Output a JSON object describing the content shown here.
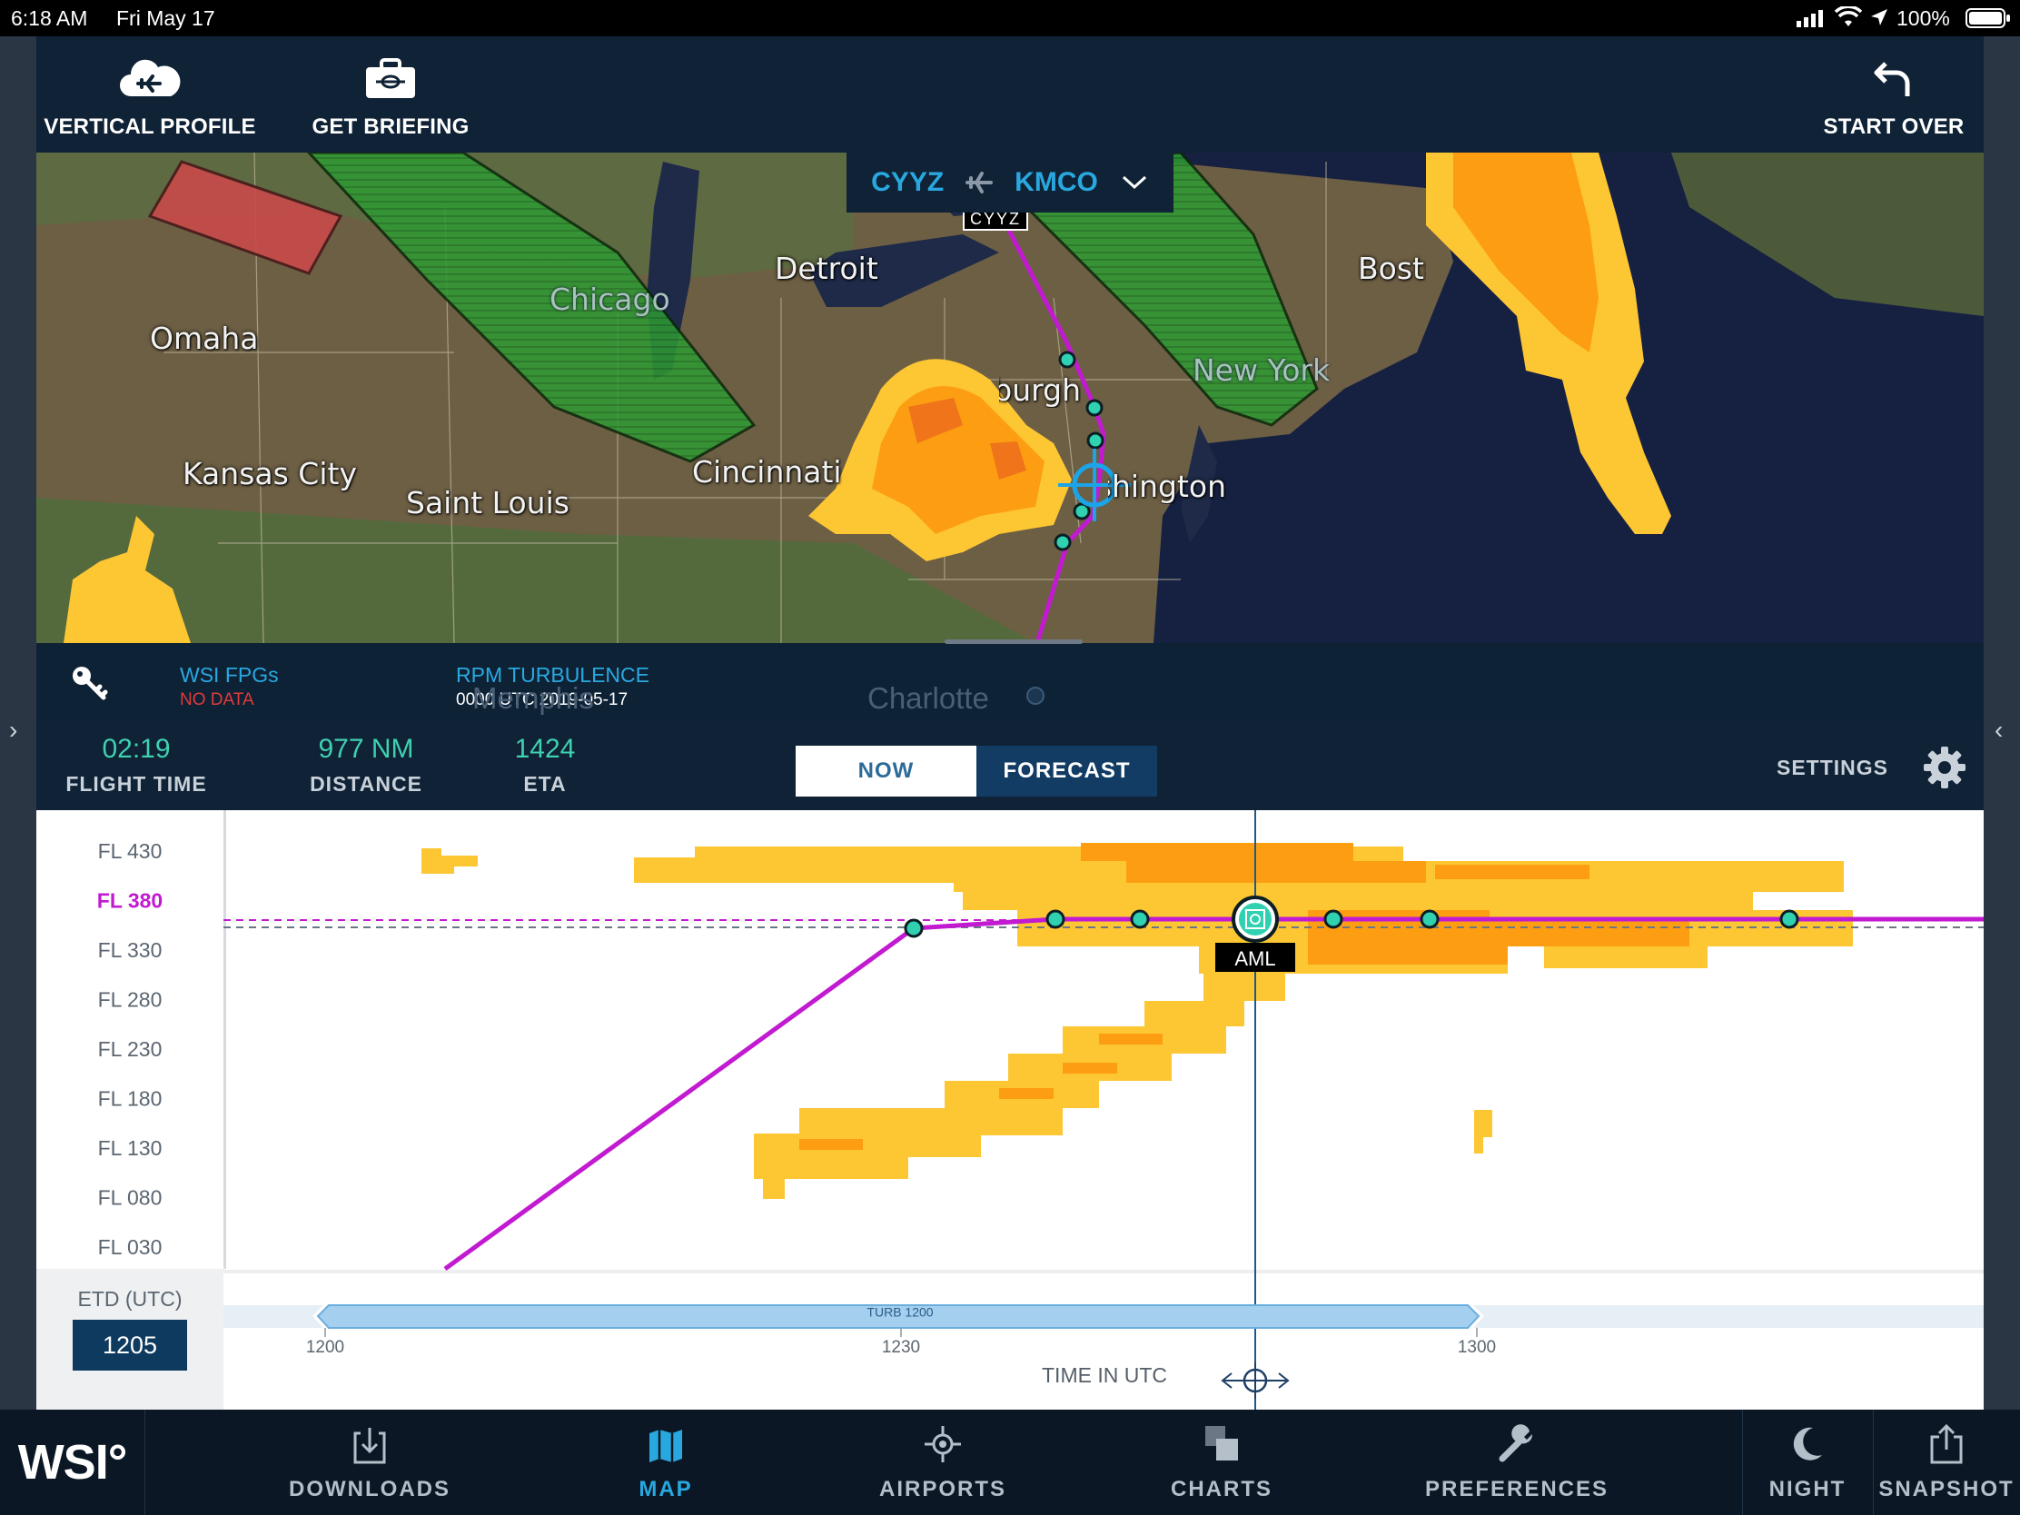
{
  "status_bar": {
    "time": "6:18 AM",
    "date": "Fri May 17",
    "battery": "100%"
  },
  "toolbar": {
    "vertical_profile": "VERTICAL PROFILE",
    "get_briefing": "GET BRIEFING",
    "start_over": "START OVER"
  },
  "route": {
    "origin": "CYYZ",
    "destination": "KMCO",
    "origin_marker": "CYYZ"
  },
  "map": {
    "cities": [
      "Omaha",
      "Chicago",
      "Detroit",
      "Kansas City",
      "Saint Louis",
      "Cincinnati",
      "Pittsburgh",
      "Washington",
      "New York",
      "Boston",
      "Memphis",
      "Charlotte"
    ]
  },
  "legend": {
    "fpg_title": "WSI FPGs",
    "fpg_status": "NO DATA",
    "turb_title": "RPM TURBULENCE",
    "turb_time": "0000 UTC 2019-05-17"
  },
  "stats": {
    "flight_time_value": "02:19",
    "flight_time_label": "FLIGHT TIME",
    "distance_value": "977 NM",
    "distance_label": "DISTANCE",
    "eta_value": "1424",
    "eta_label": "ETA"
  },
  "mode": {
    "now": "NOW",
    "forecast": "FORECAST",
    "selected": "FORECAST"
  },
  "settings_label": "SETTINGS",
  "profile": {
    "flight_levels": [
      "FL 430",
      "FL 380",
      "FL 330",
      "FL 280",
      "FL 230",
      "FL 180",
      "FL 130",
      "FL 080",
      "FL 030"
    ],
    "cruise_level": "FL 380",
    "waypoint_label": "AML",
    "etd_label": "ETD (UTC)",
    "etd_value": "1205",
    "timeline_label": "TURB 1200",
    "time_ticks": [
      "1200",
      "1230",
      "1300"
    ],
    "x_axis_label": "TIME IN UTC"
  },
  "tabs": {
    "brand": "WSI°",
    "downloads": "DOWNLOADS",
    "map": "MAP",
    "airports": "AIRPORTS",
    "charts": "CHARTS",
    "preferences": "PREFERENCES",
    "night": "NIGHT",
    "snapshot": "SNAPSHOT",
    "active": "MAP"
  },
  "colors": {
    "accent": "#29a8e0",
    "route": "#c21ad1",
    "waypoint": "#2fd1b0",
    "turb_light": "#fdc633",
    "turb_moderate": "#fd9e12",
    "turb_severe": "#f0741a",
    "fpg_green": "#2b8a2f",
    "fpg_red": "#c44a4a",
    "nav_bg": "#0f2236"
  }
}
